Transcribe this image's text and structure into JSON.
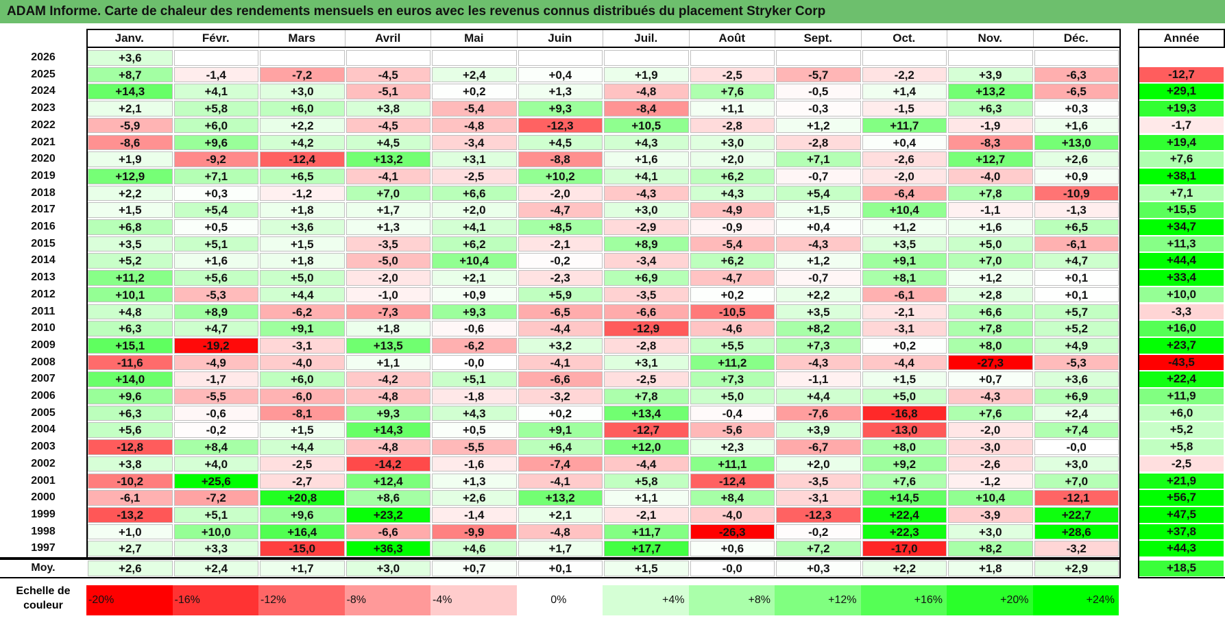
{
  "title": "ADAM Informe. Carte de chaleur des rendements mensuels en euros avec les revenus connus distribués du placement Stryker Corp",
  "chart_data": {
    "type": "heatmap",
    "columns": [
      "Janv.",
      "Févr.",
      "Mars",
      "Avril",
      "Mai",
      "Juin",
      "Juil.",
      "Août",
      "Sept.",
      "Oct.",
      "Nov.",
      "Déc."
    ],
    "year_header": "Année",
    "rows": [
      {
        "year": "2026",
        "months": [
          "+3,6",
          "",
          "",
          "",
          "",
          "",
          "",
          "",
          "",
          "",
          "",
          ""
        ],
        "annual": ""
      },
      {
        "year": "2025",
        "months": [
          "+8,7",
          "-1,4",
          "-7,2",
          "-4,5",
          "+2,4",
          "+0,4",
          "+1,9",
          "-2,5",
          "-5,7",
          "-2,2",
          "+3,9",
          "-6,3"
        ],
        "annual": "-12,7"
      },
      {
        "year": "2024",
        "months": [
          "+14,3",
          "+4,1",
          "+3,0",
          "-5,1",
          "+0,2",
          "+1,3",
          "-4,8",
          "+7,6",
          "-0,5",
          "+1,4",
          "+13,2",
          "-6,5"
        ],
        "annual": "+29,1"
      },
      {
        "year": "2023",
        "months": [
          "+2,1",
          "+5,8",
          "+6,0",
          "+3,8",
          "-5,4",
          "+9,3",
          "-8,4",
          "+1,1",
          "-0,3",
          "-1,5",
          "+6,3",
          "+0,3"
        ],
        "annual": "+19,3"
      },
      {
        "year": "2022",
        "months": [
          "-5,9",
          "+6,0",
          "+2,2",
          "-4,5",
          "-4,8",
          "-12,3",
          "+10,5",
          "-2,8",
          "+1,2",
          "+11,7",
          "-1,9",
          "+1,6"
        ],
        "annual": "-1,7"
      },
      {
        "year": "2021",
        "months": [
          "-8,6",
          "+9,6",
          "+4,2",
          "+4,5",
          "-3,4",
          "+4,5",
          "+4,3",
          "+3,0",
          "-2,8",
          "+0,4",
          "-8,3",
          "+13,0"
        ],
        "annual": "+19,4"
      },
      {
        "year": "2020",
        "months": [
          "+1,9",
          "-9,2",
          "-12,4",
          "+13,2",
          "+3,1",
          "-8,8",
          "+1,6",
          "+2,0",
          "+7,1",
          "-2,6",
          "+12,7",
          "+2,6"
        ],
        "annual": "+7,6"
      },
      {
        "year": "2019",
        "months": [
          "+12,9",
          "+7,1",
          "+6,5",
          "-4,1",
          "-2,5",
          "+10,2",
          "+4,1",
          "+6,2",
          "-0,7",
          "-2,0",
          "-4,0",
          "+0,9"
        ],
        "annual": "+38,1"
      },
      {
        "year": "2018",
        "months": [
          "+2,2",
          "+0,3",
          "-1,2",
          "+7,0",
          "+6,6",
          "-2,0",
          "-4,3",
          "+4,3",
          "+5,4",
          "-6,4",
          "+7,8",
          "-10,9"
        ],
        "annual": "+7,1"
      },
      {
        "year": "2017",
        "months": [
          "+1,5",
          "+5,4",
          "+1,8",
          "+1,7",
          "+2,0",
          "-4,7",
          "+3,0",
          "-4,9",
          "+1,5",
          "+10,4",
          "-1,1",
          "-1,3"
        ],
        "annual": "+15,5"
      },
      {
        "year": "2016",
        "months": [
          "+6,8",
          "+0,5",
          "+3,6",
          "+1,3",
          "+4,1",
          "+8,5",
          "-2,9",
          "-0,9",
          "+0,4",
          "+1,2",
          "+1,6",
          "+6,5"
        ],
        "annual": "+34,7"
      },
      {
        "year": "2015",
        "months": [
          "+3,5",
          "+5,1",
          "+1,5",
          "-3,5",
          "+6,2",
          "-2,1",
          "+8,9",
          "-5,4",
          "-4,3",
          "+3,5",
          "+5,0",
          "-6,1"
        ],
        "annual": "+11,3"
      },
      {
        "year": "2014",
        "months": [
          "+5,2",
          "+1,6",
          "+1,8",
          "-5,0",
          "+10,4",
          "-0,2",
          "-3,4",
          "+6,2",
          "+1,2",
          "+9,1",
          "+7,0",
          "+4,7"
        ],
        "annual": "+44,4"
      },
      {
        "year": "2013",
        "months": [
          "+11,2",
          "+5,6",
          "+5,0",
          "-2,0",
          "+2,1",
          "-2,3",
          "+6,9",
          "-4,7",
          "-0,7",
          "+8,1",
          "+1,2",
          "+0,1"
        ],
        "annual": "+33,4"
      },
      {
        "year": "2012",
        "months": [
          "+10,1",
          "-5,3",
          "+4,4",
          "-1,0",
          "+0,9",
          "+5,9",
          "-3,5",
          "+0,2",
          "+2,2",
          "-6,1",
          "+2,8",
          "+0,1"
        ],
        "annual": "+10,0"
      },
      {
        "year": "2011",
        "months": [
          "+4,8",
          "+8,9",
          "-6,2",
          "-7,3",
          "+9,3",
          "-6,5",
          "-6,6",
          "-10,5",
          "+3,5",
          "-2,1",
          "+6,6",
          "+5,7"
        ],
        "annual": "-3,3"
      },
      {
        "year": "2010",
        "months": [
          "+6,3",
          "+4,7",
          "+9,1",
          "+1,8",
          "-0,6",
          "-4,4",
          "-12,9",
          "-4,6",
          "+8,2",
          "-3,1",
          "+7,8",
          "+5,2"
        ],
        "annual": "+16,0"
      },
      {
        "year": "2009",
        "months": [
          "+15,1",
          "-19,2",
          "-3,1",
          "+13,5",
          "-6,2",
          "+3,2",
          "-2,8",
          "+5,5",
          "+7,3",
          "+0,2",
          "+8,0",
          "+4,9"
        ],
        "annual": "+23,7"
      },
      {
        "year": "2008",
        "months": [
          "-11,6",
          "-4,9",
          "-4,0",
          "+1,1",
          "-0,0",
          "-4,1",
          "+3,1",
          "+11,2",
          "-4,3",
          "-4,4",
          "-27,3",
          "-5,3"
        ],
        "annual": "-43,5"
      },
      {
        "year": "2007",
        "months": [
          "+14,0",
          "-1,7",
          "+6,0",
          "-4,2",
          "+5,1",
          "-6,6",
          "-2,5",
          "+7,3",
          "-1,1",
          "+1,5",
          "+0,7",
          "+3,6"
        ],
        "annual": "+22,4"
      },
      {
        "year": "2006",
        "months": [
          "+9,6",
          "-5,5",
          "-6,0",
          "-4,8",
          "-1,8",
          "-3,2",
          "+7,8",
          "+5,0",
          "+4,4",
          "+5,0",
          "-4,3",
          "+6,9"
        ],
        "annual": "+11,9"
      },
      {
        "year": "2005",
        "months": [
          "+6,3",
          "-0,6",
          "-8,1",
          "+9,3",
          "+4,3",
          "+0,2",
          "+13,4",
          "-0,4",
          "-7,6",
          "-16,8",
          "+7,6",
          "+2,4"
        ],
        "annual": "+6,0"
      },
      {
        "year": "2004",
        "months": [
          "+5,6",
          "-0,2",
          "+1,5",
          "+14,3",
          "+0,5",
          "+9,1",
          "-12,7",
          "-5,6",
          "+3,9",
          "-13,0",
          "-2,0",
          "+7,4"
        ],
        "annual": "+5,2"
      },
      {
        "year": "2003",
        "months": [
          "-12,8",
          "+8,4",
          "+4,4",
          "-4,8",
          "-5,5",
          "+6,4",
          "+12,0",
          "+2,3",
          "-6,7",
          "+8,0",
          "-3,0",
          "-0,0"
        ],
        "annual": "+5,8"
      },
      {
        "year": "2002",
        "months": [
          "+3,8",
          "+4,0",
          "-2,5",
          "-14,2",
          "-1,6",
          "-7,4",
          "-4,4",
          "+11,1",
          "+2,0",
          "+9,2",
          "-2,6",
          "+3,0"
        ],
        "annual": "-2,5"
      },
      {
        "year": "2001",
        "months": [
          "-10,2",
          "+25,6",
          "-2,7",
          "+12,4",
          "+1,3",
          "-4,1",
          "+5,8",
          "-12,4",
          "-3,5",
          "+7,6",
          "-1,2",
          "+7,0"
        ],
        "annual": "+21,9"
      },
      {
        "year": "2000",
        "months": [
          "-6,1",
          "-7,2",
          "+20,8",
          "+8,6",
          "+2,6",
          "+13,2",
          "+1,1",
          "+8,4",
          "-3,1",
          "+14,5",
          "+10,4",
          "-12,1"
        ],
        "annual": "+56,7"
      },
      {
        "year": "1999",
        "months": [
          "-13,2",
          "+5,1",
          "+9,6",
          "+23,2",
          "-1,4",
          "+2,1",
          "-2,1",
          "-4,0",
          "-12,3",
          "+22,4",
          "-3,9",
          "+22,7"
        ],
        "annual": "+47,5"
      },
      {
        "year": "1998",
        "months": [
          "+1,0",
          "+10,0",
          "+16,4",
          "-6,6",
          "-9,9",
          "-4,8",
          "+11,7",
          "-26,3",
          "-0,2",
          "+22,3",
          "+3,0",
          "+28,6"
        ],
        "annual": "+37,8"
      },
      {
        "year": "1997",
        "months": [
          "+2,7",
          "+3,3",
          "-15,0",
          "+36,3",
          "+4,6",
          "+1,7",
          "+17,7",
          "+0,6",
          "+7,2",
          "-17,0",
          "+8,2",
          "-3,2"
        ],
        "annual": "+44,3"
      }
    ],
    "average": {
      "label": "Moy.",
      "months": [
        "+2,6",
        "+2,4",
        "+1,7",
        "+3,0",
        "+0,7",
        "+0,1",
        "+1,5",
        "-0,0",
        "+0,3",
        "+2,2",
        "+1,8",
        "+2,9"
      ],
      "annual": "+18,5"
    },
    "scale": {
      "label": "Echelle de couleur",
      "items": [
        "-20%",
        "-16%",
        "-12%",
        "-8%",
        "-4%",
        "0%",
        "+4%",
        "+8%",
        "+12%",
        "+16%",
        "+20%",
        "+24%"
      ],
      "values": [
        -20,
        -16,
        -12,
        -8,
        -4,
        0,
        4,
        8,
        12,
        16,
        20,
        24
      ]
    }
  }
}
